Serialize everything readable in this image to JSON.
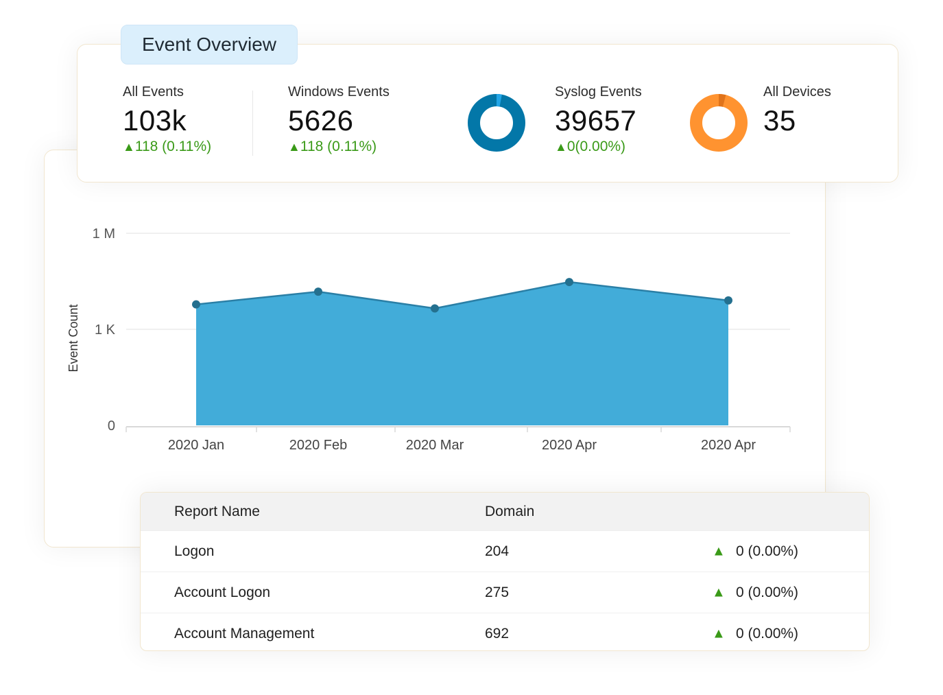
{
  "overview": {
    "title": "Event Overview",
    "metrics": [
      {
        "label": "All Events",
        "value": "103k",
        "delta": "118 (0.11%)"
      },
      {
        "label": "Windows Events",
        "value": "5626",
        "delta": "118 (0.11%)"
      },
      {
        "label": "Syslog Events",
        "value": "39657",
        "delta": "0(0.00%)"
      },
      {
        "label": "All Devices",
        "value": "35"
      }
    ],
    "donuts": [
      {
        "name": "syslog",
        "main_color": "#0377a8",
        "highlight_color": "#22a6e8",
        "highlight_fraction": 0.03
      },
      {
        "name": "devices",
        "main_color": "#ff9330",
        "highlight_color": "#e0731a",
        "highlight_fraction": 0.04
      }
    ]
  },
  "chart_data": {
    "type": "area",
    "ylabel": "Event Count",
    "y_ticks": [
      "1 M",
      "1 K",
      "0"
    ],
    "x": [
      "2020 Jan",
      "2020 Feb",
      "2020 Mar",
      "2020 Apr",
      "2020 Apr"
    ],
    "y_scale": "log",
    "values": [
      6000,
      15000,
      4500,
      30000,
      8000
    ],
    "color": "#42acd9",
    "line_color": "#2a7fa6",
    "grid": true
  },
  "table": {
    "headers": [
      "Report Name",
      "Domain"
    ],
    "rows": [
      {
        "name": "Logon",
        "domain": "204",
        "delta": "0 (0.00%)"
      },
      {
        "name": "Account Logon",
        "domain": "275",
        "delta": "0 (0.00%)"
      },
      {
        "name": "Account Management",
        "domain": "692",
        "delta": "0 (0.00%)"
      }
    ],
    "up_color": "#3a9a18"
  }
}
